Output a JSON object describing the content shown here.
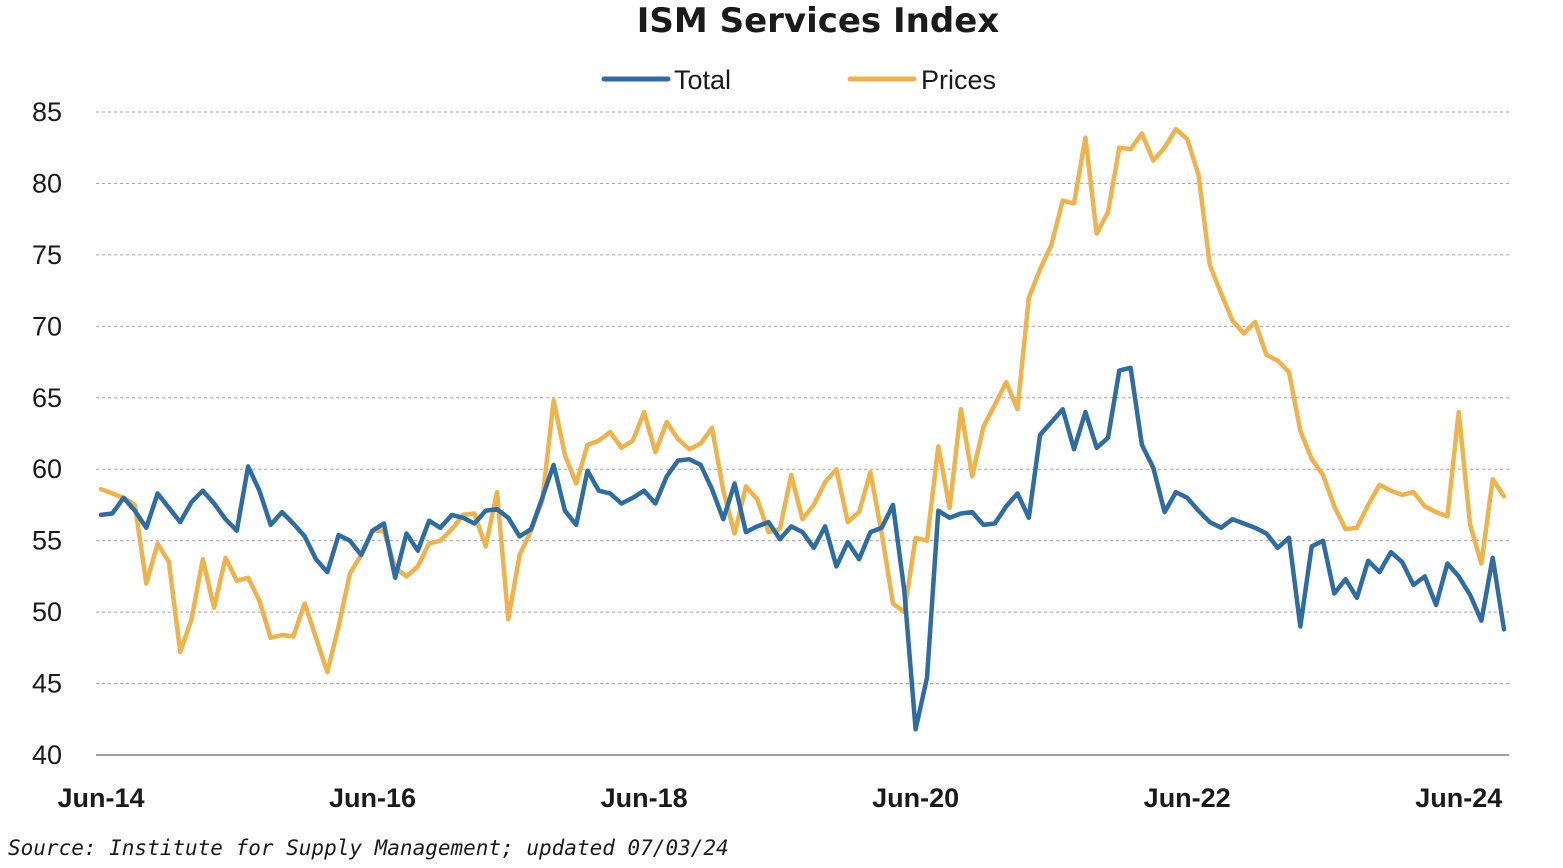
{
  "chart_data": {
    "type": "line",
    "title": "ISM Services Index",
    "source": "Source: Institute for Supply Management; updated 07/03/24",
    "ylim": [
      40,
      85
    ],
    "yticks": [
      "85",
      "80",
      "75",
      "70",
      "65",
      "60",
      "55",
      "50",
      "45",
      "40"
    ],
    "x_tick_labels": [
      "Jun-14",
      "Jun-16",
      "Jun-18",
      "Jun-20",
      "Jun-22",
      "Jun-24"
    ],
    "x_start": "Jun-14",
    "x_end": "Jun-24",
    "grid": true,
    "legend_position": "top-center",
    "series": [
      {
        "name": "Total",
        "color": "#2e6ca4",
        "values": [
          56.8,
          56.9,
          58.0,
          57.1,
          55.9,
          58.3,
          57.3,
          56.3,
          57.7,
          58.5,
          57.6,
          56.5,
          55.7,
          60.2,
          58.5,
          56.1,
          57.0,
          56.2,
          55.3,
          53.7,
          52.8,
          55.4,
          55.0,
          54.0,
          55.7,
          56.2,
          52.4,
          55.5,
          54.3,
          56.4,
          55.9,
          56.8,
          56.6,
          56.2,
          57.1,
          57.2,
          56.6,
          55.3,
          55.8,
          58.0,
          60.3,
          57.1,
          56.1,
          59.9,
          58.5,
          58.3,
          57.6,
          58.0,
          58.5,
          57.6,
          59.5,
          60.6,
          60.7,
          60.3,
          58.6,
          56.5,
          59.0,
          55.6,
          56.0,
          56.3,
          55.1,
          56.0,
          55.6,
          54.5,
          56.0,
          53.2,
          54.9,
          53.7,
          55.6,
          55.9,
          57.5,
          51.5,
          41.8,
          45.4,
          57.1,
          56.6,
          56.9,
          57.0,
          56.1,
          56.2,
          57.4,
          58.3,
          56.6,
          62.4,
          63.3,
          64.2,
          61.4,
          64.0,
          61.5,
          62.2,
          66.9,
          67.1,
          61.7,
          60.1,
          57.0,
          58.4,
          58.0,
          57.1,
          56.3,
          55.9,
          56.5,
          56.2,
          55.9,
          55.5,
          54.5,
          55.2,
          49.0,
          54.6,
          55.0,
          51.3,
          52.3,
          51.0,
          53.6,
          52.8,
          54.2,
          53.5,
          51.9,
          52.5,
          50.5,
          53.4,
          52.5,
          51.2,
          49.4,
          53.8,
          48.8
        ]
      },
      {
        "name": "Prices",
        "color": "#f0b24a",
        "values": [
          58.6,
          58.3,
          58.0,
          57.5,
          52.0,
          54.8,
          53.5,
          47.2,
          49.5,
          53.7,
          50.3,
          53.8,
          52.2,
          52.4,
          50.8,
          48.2,
          48.4,
          48.3,
          50.6,
          48.2,
          45.8,
          49.0,
          52.7,
          54.0,
          55.7,
          55.7,
          53.1,
          52.5,
          53.2,
          54.8,
          55.0,
          55.8,
          56.8,
          56.9,
          54.6,
          58.4,
          49.5,
          54.0,
          55.7,
          57.8,
          64.8,
          61.0,
          59.0,
          61.7,
          62.0,
          62.6,
          61.5,
          62.0,
          64.0,
          61.2,
          63.3,
          62.1,
          61.4,
          61.8,
          62.9,
          58.5,
          55.5,
          58.8,
          57.9,
          55.6,
          55.8,
          59.6,
          56.5,
          57.5,
          59.1,
          60.0,
          56.3,
          57.0,
          59.8,
          55.5,
          50.6,
          50.0,
          55.2,
          55.0,
          61.6,
          57.3,
          64.2,
          59.5,
          63.0,
          64.5,
          66.1,
          64.2,
          72.0,
          74.0,
          75.7,
          78.8,
          78.6,
          83.2,
          76.5,
          78.0,
          82.5,
          82.4,
          83.5,
          81.6,
          82.5,
          83.8,
          83.1,
          80.6,
          74.3,
          72.3,
          70.4,
          69.5,
          70.3,
          68.0,
          67.6,
          66.8,
          62.7,
          60.7,
          59.6,
          57.4,
          55.8,
          55.9,
          57.5,
          58.9,
          58.5,
          58.2,
          58.4,
          57.4,
          57.0,
          56.7,
          64.0,
          56.1,
          53.4,
          59.3,
          58.1
        ]
      }
    ]
  }
}
